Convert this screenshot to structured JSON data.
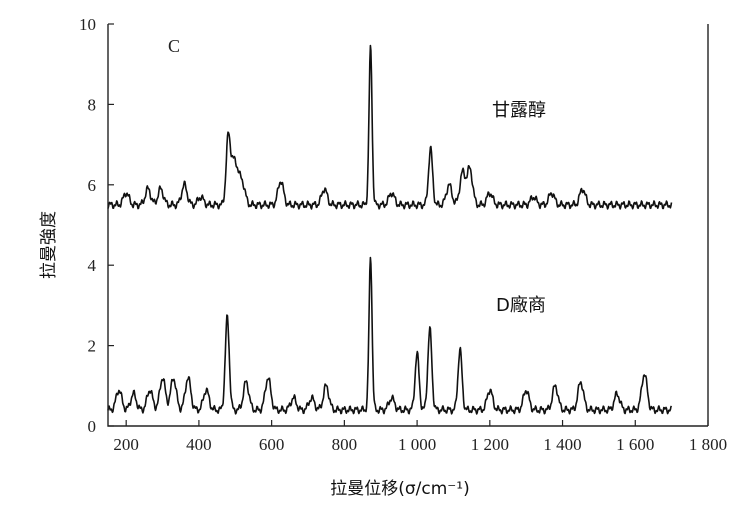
{
  "chart_data": {
    "type": "line",
    "panel_label": "C",
    "xlabel": "拉曼位移(σ/cm⁻¹)",
    "ylabel": "拉曼強度",
    "xlim": [
      150,
      1800
    ],
    "ylim": [
      0,
      10
    ],
    "x_ticks": [
      200,
      400,
      600,
      800,
      1000,
      1200,
      1400,
      1600,
      1800
    ],
    "x_tick_labels": [
      "200",
      "400",
      "600",
      "800",
      "1 000",
      "1 200",
      "1 400",
      "1 600",
      "1 800"
    ],
    "y_ticks": [
      0,
      2,
      4,
      6,
      8,
      10
    ],
    "y_tick_labels": [
      "0",
      "2",
      "4",
      "6",
      "8",
      "10"
    ],
    "grid": false,
    "series": [
      {
        "name": "甘露醇",
        "baseline": 5.5,
        "x_end": 1700,
        "peaks": [
          {
            "x": 200,
            "h": 0.3
          },
          {
            "x": 260,
            "h": 0.4
          },
          {
            "x": 295,
            "h": 0.4
          },
          {
            "x": 360,
            "h": 0.5
          },
          {
            "x": 405,
            "h": 0.2
          },
          {
            "x": 480,
            "h": 1.5
          },
          {
            "x": 492,
            "h": 0.9
          },
          {
            "x": 505,
            "h": 0.7
          },
          {
            "x": 520,
            "h": 0.5
          },
          {
            "x": 625,
            "h": 0.6
          },
          {
            "x": 745,
            "h": 0.4
          },
          {
            "x": 872,
            "h": 3.9
          },
          {
            "x": 930,
            "h": 0.3
          },
          {
            "x": 1037,
            "h": 1.4
          },
          {
            "x": 1088,
            "h": 0.5
          },
          {
            "x": 1125,
            "h": 0.8
          },
          {
            "x": 1145,
            "h": 0.9
          },
          {
            "x": 1200,
            "h": 0.3
          },
          {
            "x": 1320,
            "h": 0.2
          },
          {
            "x": 1370,
            "h": 0.3
          },
          {
            "x": 1455,
            "h": 0.4
          }
        ]
      },
      {
        "name": "D廠商",
        "baseline": 0.4,
        "x_end": 1700,
        "peaks": [
          {
            "x": 180,
            "h": 0.5
          },
          {
            "x": 220,
            "h": 0.4
          },
          {
            "x": 265,
            "h": 0.5
          },
          {
            "x": 300,
            "h": 0.8
          },
          {
            "x": 330,
            "h": 0.8
          },
          {
            "x": 370,
            "h": 0.8
          },
          {
            "x": 420,
            "h": 0.5
          },
          {
            "x": 478,
            "h": 2.3
          },
          {
            "x": 530,
            "h": 0.7
          },
          {
            "x": 590,
            "h": 0.8
          },
          {
            "x": 660,
            "h": 0.3
          },
          {
            "x": 710,
            "h": 0.3
          },
          {
            "x": 750,
            "h": 0.6
          },
          {
            "x": 872,
            "h": 3.8
          },
          {
            "x": 930,
            "h": 0.3
          },
          {
            "x": 1000,
            "h": 1.4
          },
          {
            "x": 1035,
            "h": 2.0
          },
          {
            "x": 1118,
            "h": 1.5
          },
          {
            "x": 1200,
            "h": 0.5
          },
          {
            "x": 1300,
            "h": 0.5
          },
          {
            "x": 1380,
            "h": 0.6
          },
          {
            "x": 1450,
            "h": 0.7
          },
          {
            "x": 1550,
            "h": 0.4
          },
          {
            "x": 1625,
            "h": 0.9
          }
        ]
      }
    ]
  }
}
